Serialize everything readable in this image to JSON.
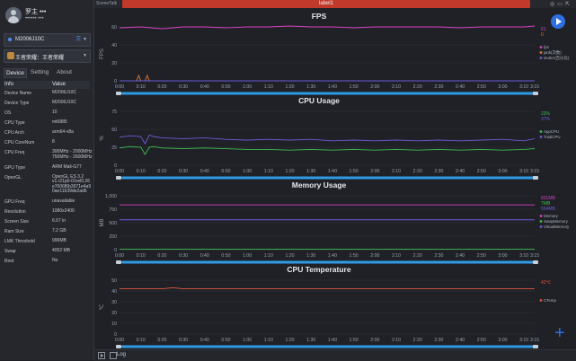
{
  "profile": {
    "name": "罗主 •••",
    "sub": "•••••• •••"
  },
  "device_select": {
    "value": "M2006J10C"
  },
  "app_select": {
    "value": "王者荣耀：王者荣耀"
  },
  "tabs": [
    "Device",
    "Setting",
    "About"
  ],
  "info_table": {
    "headers": [
      "Info",
      "Value"
    ],
    "rows": [
      [
        "Device Name",
        "M2006J10C"
      ],
      [
        "Device Type",
        "M2006J10C"
      ],
      [
        "OS",
        "10"
      ],
      [
        "CPU Type",
        "mt6885"
      ],
      [
        "CPU Arch",
        "arm64-v8a"
      ],
      [
        "CPU CoreNum",
        "8"
      ],
      [
        "CPU Freq",
        "300MHz - 2000MHz\n750MHz - 2600MHz"
      ],
      [
        "GPU Type",
        "ARM Mali-G77"
      ],
      [
        "OpenGL",
        "OpenGL ES 3.2\nv1.r21p0-01rel0.26\ne7606f6b3971e4a9\n0ae11639de2ad6"
      ],
      [
        "GPU Freq",
        "unavailable"
      ],
      [
        "Resolution",
        "1080x2400"
      ],
      [
        "Screen Size",
        "6.67 in"
      ],
      [
        "Ram Size",
        "7.2 GB"
      ],
      [
        "LMK Threshold",
        "996MB"
      ],
      [
        "Swap",
        "4052 MB"
      ],
      [
        "Root",
        "No"
      ]
    ]
  },
  "topbar": {
    "brand": "SceneTalk",
    "label": "label1"
  },
  "bottom": {
    "log_label": "Log"
  },
  "colors": {
    "accent": "#2f6fe4",
    "label_bar": "#c0392b"
  },
  "chart_data": [
    {
      "type": "line",
      "title": "FPS",
      "ylabel": "FPS",
      "ylim": [
        0,
        60
      ],
      "yticks": [
        0,
        20,
        40,
        60
      ],
      "xticks": [
        "0:00",
        "0:10",
        "0:20",
        "0:30",
        "0:40",
        "0:50",
        "1:00",
        "1:10",
        "1:20",
        "1:30",
        "1:40",
        "1:50",
        "2:00",
        "2:10",
        "2:20",
        "2:30",
        "2:40",
        "2:50",
        "3:00",
        "3:10"
      ],
      "xmax": 195,
      "end_label": "3:15",
      "current_values": [
        "61",
        "0"
      ],
      "series": [
        {
          "name": "fps",
          "color": "#d83fc0",
          "x": [
            0,
            10,
            20,
            30,
            40,
            50,
            60,
            70,
            80,
            90,
            100,
            110,
            120,
            130,
            140,
            150,
            160,
            170,
            180,
            190,
            195
          ],
          "y": [
            59,
            60,
            58,
            60,
            60,
            59,
            60,
            60,
            61,
            60,
            60,
            59,
            60,
            60,
            60,
            60,
            59,
            60,
            60,
            60,
            61
          ]
        },
        {
          "name": "jank(次数)",
          "color": "#e07b39",
          "x": [
            0,
            8,
            9,
            10,
            12,
            13,
            14,
            16,
            195
          ],
          "y": [
            0,
            0,
            6,
            0,
            0,
            6,
            0,
            0,
            0
          ]
        },
        {
          "name": "stutter(百分比)",
          "color": "#6a5cd8",
          "x": [
            0,
            195
          ],
          "y": [
            0,
            0
          ]
        }
      ]
    },
    {
      "type": "line",
      "title": "CPU Usage",
      "ylabel": "%",
      "ylim": [
        0,
        75
      ],
      "yticks": [
        0,
        25,
        50,
        75
      ],
      "xticks": [
        "0:00",
        "0:10",
        "0:20",
        "0:30",
        "0:40",
        "0:50",
        "1:00",
        "1:10",
        "1:20",
        "1:30",
        "1:40",
        "1:50",
        "2:00",
        "2:10",
        "2:20",
        "2:30",
        "2:40",
        "2:50",
        "3:00",
        "3:10"
      ],
      "xmax": 195,
      "end_label": "3:15",
      "current_values": [
        "23%",
        "37%"
      ],
      "series": [
        {
          "name": "AppCPU",
          "color": "#3fbf4f",
          "x": [
            0,
            5,
            10,
            12,
            14,
            16,
            20,
            30,
            40,
            50,
            60,
            70,
            80,
            90,
            100,
            110,
            120,
            130,
            140,
            150,
            160,
            170,
            180,
            190,
            195
          ],
          "y": [
            24,
            26,
            25,
            15,
            25,
            26,
            24,
            23,
            24,
            23,
            22,
            22,
            21,
            22,
            21,
            22,
            21,
            22,
            21,
            22,
            21,
            22,
            21,
            22,
            23
          ]
        },
        {
          "name": "TotalCPU",
          "color": "#6a5cd8",
          "x": [
            0,
            5,
            10,
            12,
            14,
            16,
            20,
            30,
            40,
            50,
            60,
            70,
            80,
            90,
            100,
            110,
            120,
            130,
            140,
            150,
            160,
            170,
            180,
            190,
            195
          ],
          "y": [
            39,
            41,
            40,
            30,
            42,
            40,
            38,
            37,
            38,
            36,
            35,
            36,
            35,
            36,
            34,
            35,
            34,
            35,
            34,
            35,
            34,
            35,
            36,
            34,
            37
          ]
        }
      ]
    },
    {
      "type": "line",
      "title": "Memory Usage",
      "ylabel": "MB",
      "ylim": [
        0,
        1000
      ],
      "yticks": [
        0,
        250,
        500,
        750,
        "1,000"
      ],
      "xticks": [
        "0:00",
        "0:10",
        "0:20",
        "0:30",
        "0:40",
        "0:50",
        "1:00",
        "1:10",
        "1:20",
        "1:30",
        "1:40",
        "1:50",
        "2:00",
        "2:10",
        "2:20",
        "2:30",
        "2:40",
        "2:50",
        "3:00",
        "3:10"
      ],
      "xmax": 195,
      "end_label": "3:15",
      "current_values": [
        "831MB",
        "7MB",
        "554MB"
      ],
      "series": [
        {
          "name": "Memory",
          "color": "#d83fc0",
          "x": [
            0,
            195
          ],
          "y": [
            831,
            831
          ]
        },
        {
          "name": "SwapMemory",
          "color": "#3fbf4f",
          "x": [
            0,
            195
          ],
          "y": [
            7,
            7
          ]
        },
        {
          "name": "VirtualMemory",
          "color": "#6a5cd8",
          "x": [
            0,
            195
          ],
          "y": [
            554,
            554
          ]
        }
      ]
    },
    {
      "type": "line",
      "title": "CPU Temperature",
      "ylabel": "℃",
      "ylim": [
        0,
        50
      ],
      "yticks": [
        0,
        10,
        20,
        30,
        40,
        50
      ],
      "xticks": [
        "0:00",
        "0:10",
        "0:20",
        "0:30",
        "0:40",
        "0:50",
        "1:00",
        "1:10",
        "1:20",
        "1:30",
        "1:40",
        "1:50",
        "2:00",
        "2:10",
        "2:20",
        "2:30",
        "2:40",
        "2:50",
        "3:00",
        "3:10"
      ],
      "xmax": 195,
      "end_label": "3:15",
      "current_values": [
        "42℃"
      ],
      "series": [
        {
          "name": "CTemp",
          "color": "#e0563f",
          "x": [
            0,
            20,
            25,
            30,
            60,
            90,
            120,
            150,
            180,
            195
          ],
          "y": [
            42,
            42,
            43,
            42,
            42,
            42,
            42,
            42,
            42,
            42
          ]
        }
      ]
    }
  ]
}
